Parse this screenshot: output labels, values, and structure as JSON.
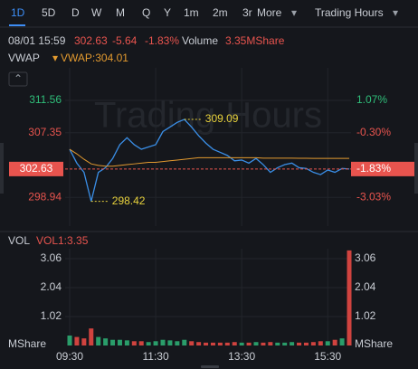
{
  "toolbar": {
    "tabs": [
      "1D",
      "5D",
      "D",
      "W",
      "M",
      "Q",
      "Y",
      "1m",
      "2m",
      "3r"
    ],
    "more": "More",
    "session": "Trading Hours"
  },
  "quote": {
    "datetime": "08/01 15:59",
    "price": "302.63",
    "change": "-5.64",
    "change_pct": "-1.83%",
    "volume_label": "Volume",
    "volume": "3.35MShare"
  },
  "chart_data": [
    {
      "type": "line",
      "indicator": "VWAP",
      "watermark": "Trading Hours",
      "x": [
        0,
        10,
        20,
        30,
        40,
        50,
        60,
        70,
        80,
        90,
        100,
        110,
        120,
        130,
        140,
        150,
        160,
        170,
        180,
        190,
        200,
        210,
        220,
        230,
        240,
        250,
        260,
        270,
        280,
        290,
        300,
        310,
        320,
        330,
        340,
        350,
        360,
        370,
        380,
        390
      ],
      "xlim": [
        0,
        390
      ],
      "series": [
        {
          "color": "#3a8ee6",
          "values": [
            305.2,
            303.4,
            302.2,
            298.42,
            302.2,
            302.8,
            304.0,
            305.8,
            306.7,
            305.8,
            305.2,
            305.5,
            305.8,
            307.5,
            308.1,
            308.7,
            309.09,
            308.1,
            306.96,
            306.0,
            305.2,
            304.8,
            304.4,
            303.7,
            303.8,
            303.4,
            304.0,
            303.2,
            302.2,
            302.8,
            303.2,
            303.4,
            302.8,
            302.7,
            302.2,
            301.9,
            302.5,
            302.2,
            302.7,
            302.63
          ]
        },
        {
          "name": "VWAP:304.01",
          "color": "#e39a2f",
          "values": [
            305.2,
            304.6,
            303.9,
            303.3,
            303.1,
            303.0,
            303.0,
            303.1,
            303.2,
            303.3,
            303.4,
            303.5,
            303.5,
            303.6,
            303.7,
            303.8,
            303.9,
            304.0,
            304.1,
            304.1,
            304.1,
            304.1,
            304.1,
            304.1,
            304.1,
            304.1,
            304.1,
            304.05,
            304.05,
            304.05,
            304.04,
            304.04,
            304.03,
            304.03,
            304.02,
            304.02,
            304.02,
            304.01,
            304.01,
            304.01
          ]
        }
      ],
      "ylim": [
        295.2,
        315.8
      ],
      "yticks": [
        311.56,
        307.35,
        298.94
      ],
      "y2lim": [
        -4.24,
        2.44
      ],
      "y2ticks": [
        {
          "value": 1.07,
          "label": "1.07%"
        },
        {
          "value": -0.3,
          "label": "-0.30%"
        },
        {
          "value": -3.03,
          "label": "-3.03%"
        }
      ],
      "last": 302.63,
      "last_pct": {
        "value": -1.83,
        "label": "-1.83%"
      },
      "annotations": [
        {
          "x": 160,
          "value": 309.09
        },
        {
          "x": 30,
          "value": 298.42
        }
      ],
      "up_color": "#2fbf7a",
      "down_color": "#e8544e",
      "grid": true
    },
    {
      "type": "bar",
      "indicator": "VOL",
      "series_name": "VOL1:3.35",
      "unit": "MShare",
      "x": [
        0,
        10,
        20,
        30,
        40,
        50,
        60,
        70,
        80,
        90,
        100,
        110,
        120,
        130,
        140,
        150,
        160,
        170,
        180,
        190,
        200,
        210,
        220,
        230,
        240,
        250,
        260,
        270,
        280,
        290,
        300,
        310,
        320,
        330,
        340,
        350,
        360,
        370,
        380,
        390
      ],
      "xlim": [
        0,
        390
      ],
      "xticks": [
        {
          "value": 0,
          "label": "09:30"
        },
        {
          "value": 120,
          "label": "11:30"
        },
        {
          "value": 240,
          "label": "13:30"
        },
        {
          "value": 360,
          "label": "15:30"
        }
      ],
      "values": [
        0.35,
        0.3,
        0.25,
        0.6,
        0.3,
        0.25,
        0.2,
        0.2,
        0.18,
        0.15,
        0.15,
        0.12,
        0.15,
        0.2,
        0.18,
        0.15,
        0.2,
        0.15,
        0.12,
        0.1,
        0.1,
        0.1,
        0.1,
        0.12,
        0.1,
        0.1,
        0.12,
        0.1,
        0.12,
        0.1,
        0.1,
        0.12,
        0.1,
        0.1,
        0.12,
        0.15,
        0.15,
        0.2,
        0.25,
        3.35
      ],
      "ylim": [
        0,
        3.41
      ],
      "yticks": [
        1.02,
        2.04,
        3.06
      ],
      "up_color": "#2a9d6a",
      "down_color": "#d0433f"
    }
  ]
}
